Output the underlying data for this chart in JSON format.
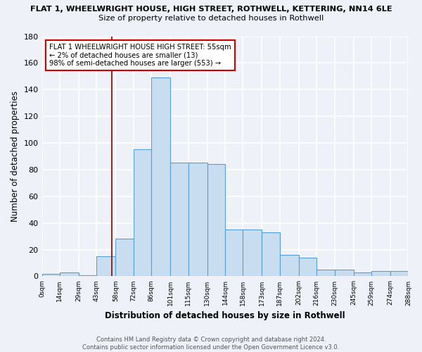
{
  "title_line1": "FLAT 1, WHEELWRIGHT HOUSE, HIGH STREET, ROTHWELL, KETTERING, NN14 6LE",
  "title_line2": "Size of property relative to detached houses in Rothwell",
  "xlabel": "Distribution of detached houses by size in Rothwell",
  "ylabel": "Number of detached properties",
  "bar_edges": [
    0,
    14,
    29,
    43,
    58,
    72,
    86,
    101,
    115,
    130,
    144,
    158,
    173,
    187,
    202,
    216,
    230,
    245,
    259,
    274,
    288
  ],
  "bar_heights": [
    2,
    3,
    1,
    15,
    28,
    95,
    149,
    85,
    85,
    84,
    35,
    35,
    33,
    16,
    14,
    5,
    5,
    3,
    4,
    4
  ],
  "bar_color": "#c8ddf0",
  "bar_edge_color": "#5a9fd4",
  "vline_x": 55,
  "vline_color": "#8b0000",
  "annotation_text": "FLAT 1 WHEELWRIGHT HOUSE HIGH STREET: 55sqm\n← 2% of detached houses are smaller (13)\n98% of semi-detached houses are larger (553) →",
  "annotation_box_color": "white",
  "annotation_box_edge": "#cc0000",
  "ylim": [
    0,
    180
  ],
  "yticks": [
    0,
    20,
    40,
    60,
    80,
    100,
    120,
    140,
    160,
    180
  ],
  "xtick_labels": [
    "0sqm",
    "14sqm",
    "29sqm",
    "43sqm",
    "58sqm",
    "72sqm",
    "86sqm",
    "101sqm",
    "115sqm",
    "130sqm",
    "144sqm",
    "158sqm",
    "173sqm",
    "187sqm",
    "202sqm",
    "216sqm",
    "230sqm",
    "245sqm",
    "259sqm",
    "274sqm",
    "288sqm"
  ],
  "footer_line1": "Contains HM Land Registry data © Crown copyright and database right 2024.",
  "footer_line2": "Contains public sector information licensed under the Open Government Licence v3.0.",
  "bg_color": "#eef2f8",
  "grid_color": "#ffffff"
}
